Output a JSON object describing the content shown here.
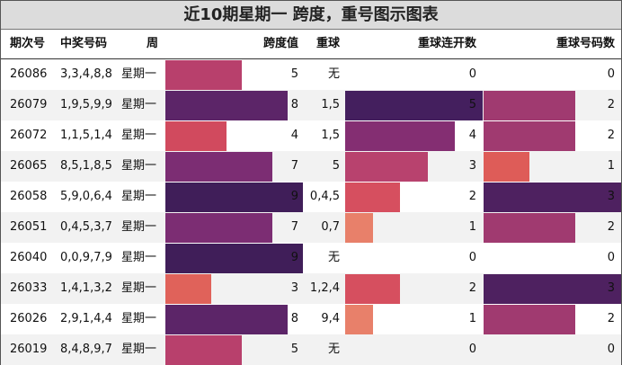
{
  "title": "近10期星期一 跨度，重号图示图表",
  "headers": {
    "period": "期次号",
    "numbers": "中奖号码",
    "weekday": "周",
    "span": "跨度值",
    "repeat": "重球",
    "streak": "重球连开数",
    "count": "重球号码数"
  },
  "chart_data": {
    "type": "table",
    "title": "近10期星期一 跨度，重号图示图表",
    "columns": [
      "期次号",
      "中奖号码",
      "周",
      "跨度值",
      "重球",
      "重球连开数",
      "重球号码数"
    ],
    "span_max": 9,
    "streak_max": 5,
    "count_max": 3,
    "colors": {
      "1": "#e8806a",
      "2": "#d64f5f",
      "3": "#b8426e",
      "4": "#842e72",
      "5": "#441f5e",
      "7": "#7c2d73",
      "8": "#5c2568",
      "9": "#401e59",
      "count1": "#de5c58",
      "count2": "#a03a70",
      "count3": "#4e2160",
      "span3": "#e0625a",
      "span4": "#d14a5e",
      "span5": "#b8406c"
    },
    "rows": [
      {
        "period": "26086",
        "numbers": "3,3,4,8,8",
        "weekday": "星期一",
        "span": 5,
        "repeat": "无",
        "streak": 0,
        "count": 0
      },
      {
        "period": "26079",
        "numbers": "1,9,5,9,9",
        "weekday": "星期一",
        "span": 8,
        "repeat": "1,5",
        "streak": 5,
        "count": 2
      },
      {
        "period": "26072",
        "numbers": "1,1,5,1,4",
        "weekday": "星期一",
        "span": 4,
        "repeat": "1,5",
        "streak": 4,
        "count": 2
      },
      {
        "period": "26065",
        "numbers": "8,5,1,8,5",
        "weekday": "星期一",
        "span": 7,
        "repeat": "5",
        "streak": 3,
        "count": 1
      },
      {
        "period": "26058",
        "numbers": "5,9,0,6,4",
        "weekday": "星期一",
        "span": 9,
        "repeat": "0,4,5",
        "streak": 2,
        "count": 3
      },
      {
        "period": "26051",
        "numbers": "0,4,5,3,7",
        "weekday": "星期一",
        "span": 7,
        "repeat": "0,7",
        "streak": 1,
        "count": 2
      },
      {
        "period": "26040",
        "numbers": "0,0,9,7,9",
        "weekday": "星期一",
        "span": 9,
        "repeat": "无",
        "streak": 0,
        "count": 0
      },
      {
        "period": "26033",
        "numbers": "1,4,1,3,2",
        "weekday": "星期一",
        "span": 3,
        "repeat": "1,2,4",
        "streak": 2,
        "count": 3
      },
      {
        "period": "26026",
        "numbers": "2,9,1,4,4",
        "weekday": "星期一",
        "span": 8,
        "repeat": "9,4",
        "streak": 1,
        "count": 2
      },
      {
        "period": "26019",
        "numbers": "8,4,8,9,7",
        "weekday": "星期一",
        "span": 5,
        "repeat": "无",
        "streak": 0,
        "count": 0
      }
    ]
  }
}
